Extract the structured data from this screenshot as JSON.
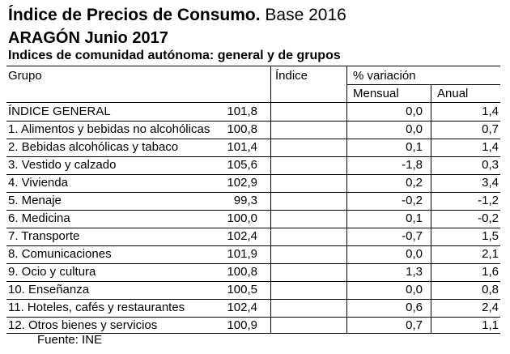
{
  "header": {
    "title_bold": "Índice de Precios de Consumo.",
    "title_rest": " Base 2016",
    "subtitle": "ARAGÓN Junio 2017",
    "table_title": "Indices de comunidad autónoma: general y de grupos"
  },
  "columns": {
    "grupo": "Grupo",
    "indice": "Índice",
    "variacion": "% variación",
    "mensual": "Mensual",
    "anual": "Anual"
  },
  "rows": [
    {
      "name": "ÍNDICE GENERAL",
      "indice": "101,8",
      "mensual": "0,0",
      "anual": "1,4"
    },
    {
      "name": "1. Alimentos y bebidas no alcohólicas",
      "indice": "100,8",
      "mensual": "0,0",
      "anual": "0,7"
    },
    {
      "name": "2. Bebidas alcohólicas y tabaco",
      "indice": "101,4",
      "mensual": "0,1",
      "anual": "1,4"
    },
    {
      "name": "3. Vestido y calzado",
      "indice": "105,6",
      "mensual": "-1,8",
      "anual": "0,3"
    },
    {
      "name": "4. Vivienda",
      "indice": "102,9",
      "mensual": "0,2",
      "anual": "3,4"
    },
    {
      "name": "5. Menaje",
      "indice": "99,3",
      "mensual": "-0,2",
      "anual": "-1,2"
    },
    {
      "name": "6. Medicina",
      "indice": "100,0",
      "mensual": "0,1",
      "anual": "-0,2"
    },
    {
      "name": "7. Transporte",
      "indice": "102,4",
      "mensual": "-0,7",
      "anual": "1,5"
    },
    {
      "name": "8. Comunicaciones",
      "indice": "101,9",
      "mensual": "0,0",
      "anual": "2,1"
    },
    {
      "name": "9. Ocio y cultura",
      "indice": "100,8",
      "mensual": "1,3",
      "anual": "1,6"
    },
    {
      "name": "10. Enseñanza",
      "indice": "100,5",
      "mensual": "0,0",
      "anual": "0,8"
    },
    {
      "name": "11. Hoteles, cafés y restaurantes",
      "indice": "102,4",
      "mensual": "0,6",
      "anual": "2,4"
    },
    {
      "name": "12. Otros bienes y servicios",
      "indice": "100,9",
      "mensual": "0,7",
      "anual": "1,1"
    }
  ],
  "footer": {
    "source": "Fuente: INE"
  }
}
